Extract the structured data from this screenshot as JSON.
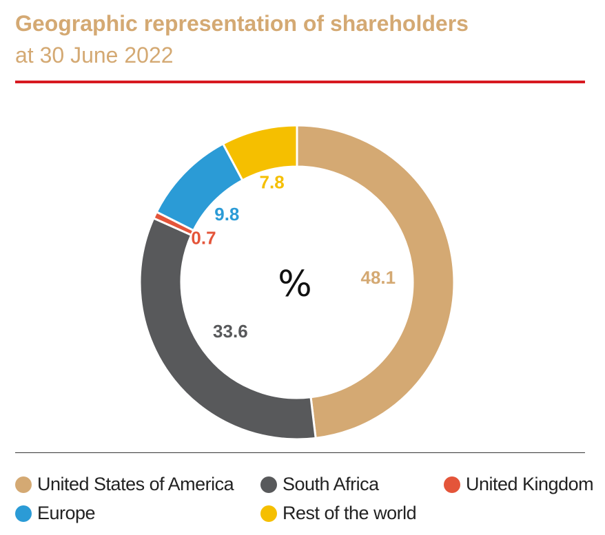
{
  "chart_data": {
    "type": "pie",
    "variant": "donut",
    "title": "Geographic representation of shareholders",
    "subtitle": "at 30 June 2022",
    "center_label": "%",
    "unit": "%",
    "series": [
      {
        "name": "United States of America",
        "value": 48.1,
        "label": "48.1",
        "color": "#d4a973"
      },
      {
        "name": "South Africa",
        "value": 33.6,
        "label": "33.6",
        "color": "#58595b"
      },
      {
        "name": "United Kingdom",
        "value": 0.7,
        "label": "0.7",
        "color": "#e4553a"
      },
      {
        "name": "Europe",
        "value": 9.8,
        "label": "9.8",
        "color": "#2b9bd6"
      },
      {
        "name": "Rest of the world",
        "value": 7.8,
        "label": "7.8",
        "color": "#f5bf00"
      }
    ],
    "legend": [
      "United States of America",
      "South Africa",
      "United Kingdom",
      "Europe",
      "Rest of the world"
    ],
    "legend_position": "bottom"
  },
  "colors": {
    "title": "#d4a973",
    "rule": "#d71920",
    "divider": "#333333"
  }
}
